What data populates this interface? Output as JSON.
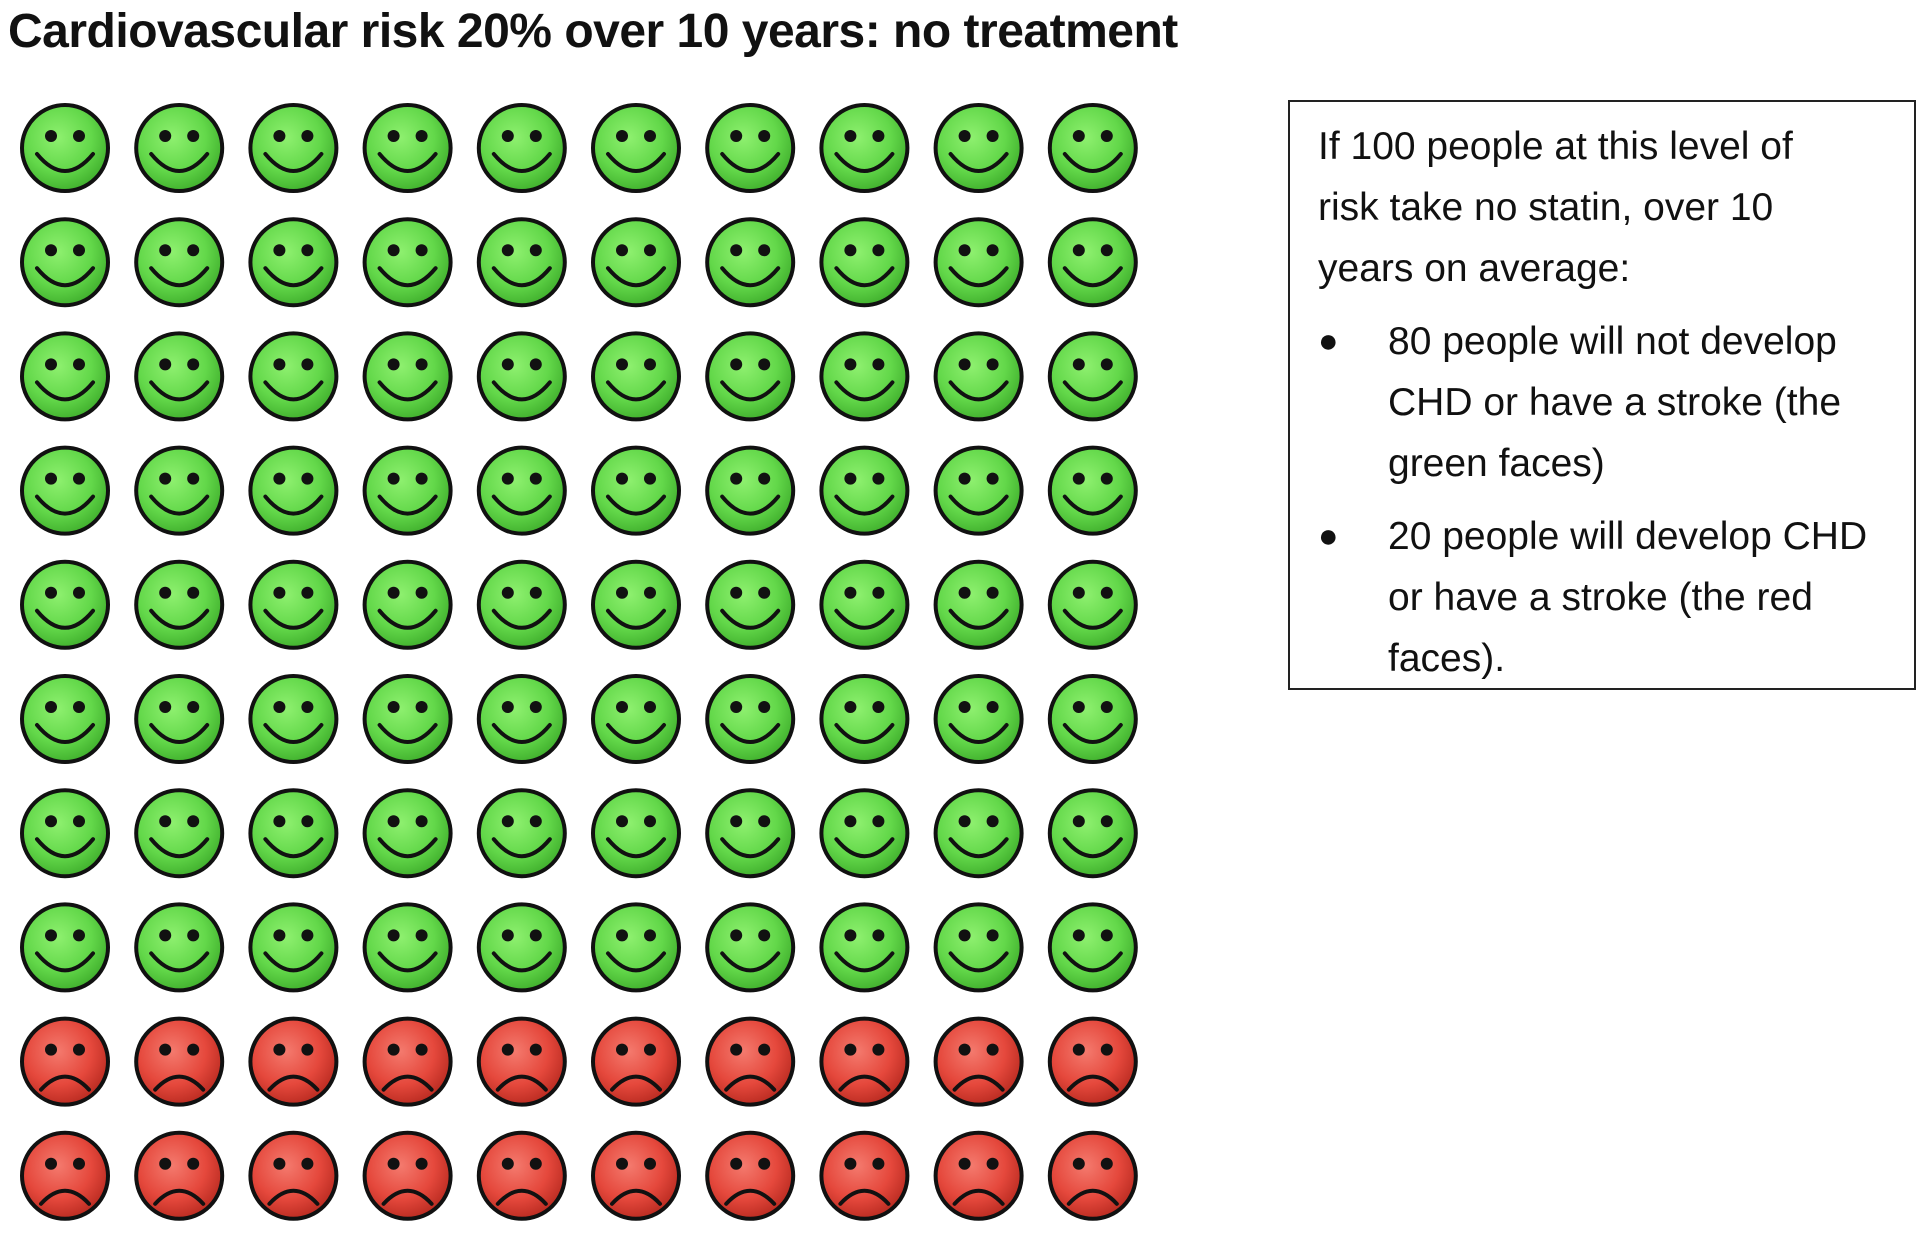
{
  "title": "Cardiovascular risk 20% over 10 years: no treatment",
  "chart_data": {
    "type": "icon-array",
    "total": 100,
    "columns": 10,
    "rows": 10,
    "groups": [
      {
        "count": 80,
        "face": "smiling-face-icon",
        "color": "#63d84a"
      },
      {
        "count": 20,
        "face": "frowning-face-icon",
        "color": "#e5483c"
      }
    ]
  },
  "legend": {
    "intro": "If 100 people at this level of risk take no statin, over 10 years on average:",
    "items": [
      {
        "text": "80 people will not develop CHD or have a stroke (the green faces)"
      },
      {
        "text": "20 people will develop CHD or have a stroke (the red faces)."
      }
    ]
  }
}
